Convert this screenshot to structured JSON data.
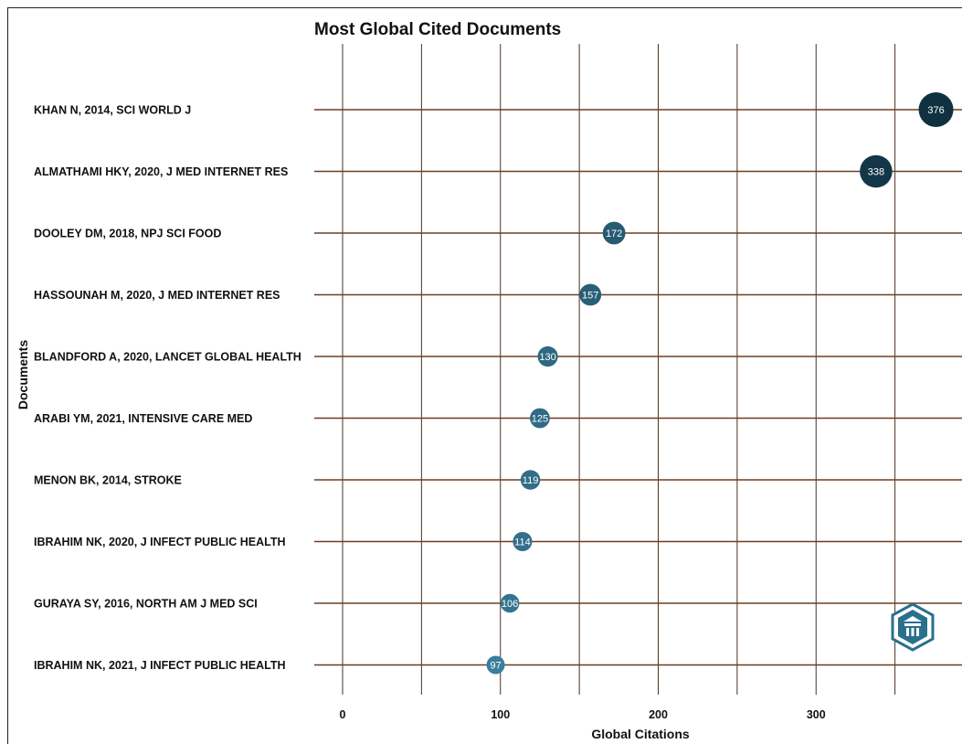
{
  "chart_data": {
    "type": "scatter",
    "title": "Most Global Cited Documents",
    "xlabel": "Global Citations",
    "ylabel": "Documents",
    "xlim": [
      0,
      380
    ],
    "xticks": [
      0,
      100,
      200,
      300
    ],
    "grid": true,
    "categories": [
      "KHAN N, 2014, SCI WORLD J",
      "ALMATHAMI HKY, 2020, J MED INTERNET RES",
      "DOOLEY DM, 2018, NPJ SCI FOOD",
      "HASSOUNAH M, 2020, J MED INTERNET RES",
      "BLANDFORD A, 2020, LANCET GLOBAL HEALTH",
      "ARABI YM, 2021, INTENSIVE CARE MED",
      "MENON BK, 2014, STROKE",
      "IBRAHIM NK, 2020, J INFECT PUBLIC HEALTH",
      "GURAYA SY, 2016, NORTH AM J MED SCI",
      "IBRAHIM NK, 2021, J INFECT PUBLIC HEALTH"
    ],
    "values": [
      376,
      338,
      172,
      157,
      130,
      125,
      119,
      114,
      106,
      97
    ],
    "colors": {
      "dark": "#0f3140",
      "light": "#3a7e9c",
      "segment": "#6b3f22",
      "grid": "#4a3322"
    }
  }
}
